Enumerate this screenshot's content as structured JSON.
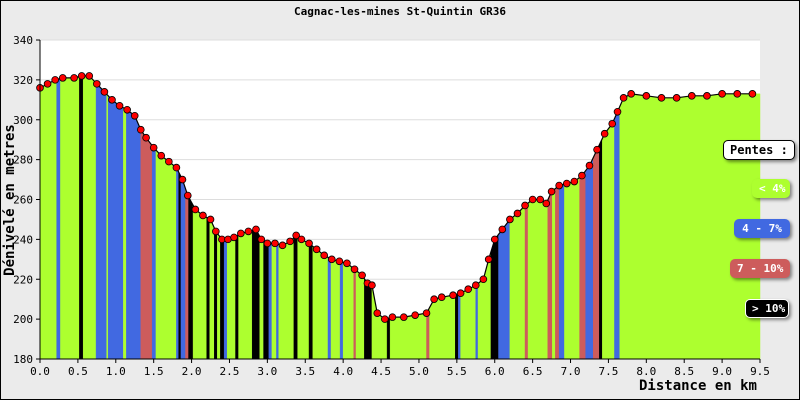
{
  "chart_data": {
    "type": "area",
    "title": "Cagnac-les-mines St-Quintin GR36",
    "xlabel": "Distance en km",
    "ylabel": "Dénivelé en metres",
    "xlim": [
      0,
      9.5
    ],
    "ylim": [
      180,
      340
    ],
    "xticks": [
      "0.0",
      "0.5",
      "1.0",
      "1.5",
      "2.0",
      "2.5",
      "3.0",
      "3.5",
      "4.0",
      "4.5",
      "5.0",
      "5.5",
      "6.0",
      "6.5",
      "7.0",
      "7.5",
      "8.0",
      "8.5",
      "9.0",
      "9.5"
    ],
    "yticks": [
      "180",
      "200",
      "220",
      "240",
      "260",
      "280",
      "300",
      "320",
      "340"
    ],
    "grid": true,
    "legend_position": "right",
    "legend_title": "Pentes :",
    "legend": [
      {
        "label": "< 4%",
        "color": "#adff2f",
        "text_color": "#ffffff"
      },
      {
        "label": "4 - 7%",
        "color": "#4169e1",
        "text_color": "#ffffff"
      },
      {
        "label": "7 - 10%",
        "color": "#cd5c5c",
        "text_color": "#ffffff"
      },
      {
        "label": "> 10%",
        "color": "#000000",
        "text_color": "#ffffff"
      }
    ],
    "marker_color": "#ff0000",
    "profile": [
      [
        0.0,
        316
      ],
      [
        0.1,
        318
      ],
      [
        0.2,
        320
      ],
      [
        0.3,
        321
      ],
      [
        0.45,
        321
      ],
      [
        0.55,
        322
      ],
      [
        0.65,
        322
      ],
      [
        0.75,
        318
      ],
      [
        0.85,
        314
      ],
      [
        0.95,
        310
      ],
      [
        1.05,
        307
      ],
      [
        1.15,
        305
      ],
      [
        1.25,
        302
      ],
      [
        1.33,
        295
      ],
      [
        1.4,
        291
      ],
      [
        1.5,
        286
      ],
      [
        1.6,
        282
      ],
      [
        1.7,
        279
      ],
      [
        1.8,
        276
      ],
      [
        1.88,
        270
      ],
      [
        1.95,
        262
      ],
      [
        2.05,
        255
      ],
      [
        2.15,
        252
      ],
      [
        2.25,
        250
      ],
      [
        2.32,
        244
      ],
      [
        2.4,
        240
      ],
      [
        2.48,
        240
      ],
      [
        2.56,
        241
      ],
      [
        2.65,
        243
      ],
      [
        2.75,
        244
      ],
      [
        2.85,
        245
      ],
      [
        2.92,
        240
      ],
      [
        3.0,
        238
      ],
      [
        3.1,
        238
      ],
      [
        3.2,
        237
      ],
      [
        3.3,
        239
      ],
      [
        3.38,
        242
      ],
      [
        3.45,
        240
      ],
      [
        3.55,
        238
      ],
      [
        3.65,
        235
      ],
      [
        3.75,
        232
      ],
      [
        3.85,
        230
      ],
      [
        3.95,
        229
      ],
      [
        4.05,
        228
      ],
      [
        4.15,
        225
      ],
      [
        4.25,
        222
      ],
      [
        4.32,
        218
      ],
      [
        4.38,
        217
      ],
      [
        4.45,
        203
      ],
      [
        4.55,
        200
      ],
      [
        4.65,
        201
      ],
      [
        4.8,
        201
      ],
      [
        4.95,
        202
      ],
      [
        5.1,
        203
      ],
      [
        5.2,
        210
      ],
      [
        5.3,
        211
      ],
      [
        5.45,
        212
      ],
      [
        5.55,
        213
      ],
      [
        5.65,
        215
      ],
      [
        5.75,
        217
      ],
      [
        5.85,
        220
      ],
      [
        5.92,
        230
      ],
      [
        6.0,
        240
      ],
      [
        6.1,
        245
      ],
      [
        6.2,
        250
      ],
      [
        6.3,
        253
      ],
      [
        6.4,
        257
      ],
      [
        6.5,
        260
      ],
      [
        6.6,
        260
      ],
      [
        6.68,
        258
      ],
      [
        6.75,
        264
      ],
      [
        6.85,
        267
      ],
      [
        6.95,
        268
      ],
      [
        7.05,
        269
      ],
      [
        7.15,
        272
      ],
      [
        7.25,
        277
      ],
      [
        7.35,
        285
      ],
      [
        7.45,
        293
      ],
      [
        7.55,
        298
      ],
      [
        7.62,
        304
      ],
      [
        7.7,
        311
      ],
      [
        7.8,
        313
      ],
      [
        8.0,
        312
      ],
      [
        8.2,
        311
      ],
      [
        8.4,
        311
      ],
      [
        8.6,
        312
      ],
      [
        8.8,
        312
      ],
      [
        9.0,
        313
      ],
      [
        9.2,
        313
      ],
      [
        9.4,
        313
      ]
    ],
    "slope_bands": [
      {
        "from": 0.0,
        "to": 0.22,
        "cls": 0
      },
      {
        "from": 0.22,
        "to": 0.27,
        "cls": 1
      },
      {
        "from": 0.27,
        "to": 0.52,
        "cls": 0
      },
      {
        "from": 0.52,
        "to": 0.57,
        "cls": 3
      },
      {
        "from": 0.57,
        "to": 0.74,
        "cls": 0
      },
      {
        "from": 0.74,
        "to": 0.88,
        "cls": 1
      },
      {
        "from": 0.88,
        "to": 0.9,
        "cls": 0
      },
      {
        "from": 0.9,
        "to": 1.1,
        "cls": 1
      },
      {
        "from": 1.1,
        "to": 1.14,
        "cls": 0
      },
      {
        "from": 1.14,
        "to": 1.33,
        "cls": 1
      },
      {
        "from": 1.33,
        "to": 1.48,
        "cls": 2
      },
      {
        "from": 1.48,
        "to": 1.53,
        "cls": 1
      },
      {
        "from": 1.53,
        "to": 1.8,
        "cls": 0
      },
      {
        "from": 1.8,
        "to": 1.83,
        "cls": 1
      },
      {
        "from": 1.83,
        "to": 1.86,
        "cls": 3
      },
      {
        "from": 1.86,
        "to": 1.92,
        "cls": 1
      },
      {
        "from": 1.92,
        "to": 1.96,
        "cls": 2
      },
      {
        "from": 1.96,
        "to": 2.02,
        "cls": 3
      },
      {
        "from": 2.02,
        "to": 2.2,
        "cls": 0
      },
      {
        "from": 2.2,
        "to": 2.24,
        "cls": 3
      },
      {
        "from": 2.24,
        "to": 2.3,
        "cls": 0
      },
      {
        "from": 2.3,
        "to": 2.34,
        "cls": 3
      },
      {
        "from": 2.34,
        "to": 2.38,
        "cls": 0
      },
      {
        "from": 2.38,
        "to": 2.43,
        "cls": 3
      },
      {
        "from": 2.43,
        "to": 2.47,
        "cls": 1
      },
      {
        "from": 2.47,
        "to": 2.58,
        "cls": 0
      },
      {
        "from": 2.58,
        "to": 2.62,
        "cls": 3
      },
      {
        "from": 2.62,
        "to": 2.8,
        "cls": 0
      },
      {
        "from": 2.8,
        "to": 2.9,
        "cls": 3
      },
      {
        "from": 2.9,
        "to": 2.95,
        "cls": 0
      },
      {
        "from": 2.95,
        "to": 3.02,
        "cls": 3
      },
      {
        "from": 3.02,
        "to": 3.06,
        "cls": 1
      },
      {
        "from": 3.06,
        "to": 3.12,
        "cls": 0
      },
      {
        "from": 3.12,
        "to": 3.15,
        "cls": 1
      },
      {
        "from": 3.15,
        "to": 3.35,
        "cls": 0
      },
      {
        "from": 3.35,
        "to": 3.4,
        "cls": 3
      },
      {
        "from": 3.4,
        "to": 3.55,
        "cls": 0
      },
      {
        "from": 3.55,
        "to": 3.6,
        "cls": 3
      },
      {
        "from": 3.6,
        "to": 3.8,
        "cls": 0
      },
      {
        "from": 3.8,
        "to": 3.84,
        "cls": 1
      },
      {
        "from": 3.84,
        "to": 3.96,
        "cls": 0
      },
      {
        "from": 3.96,
        "to": 4.0,
        "cls": 1
      },
      {
        "from": 4.0,
        "to": 4.14,
        "cls": 0
      },
      {
        "from": 4.14,
        "to": 4.17,
        "cls": 2
      },
      {
        "from": 4.17,
        "to": 4.28,
        "cls": 0
      },
      {
        "from": 4.28,
        "to": 4.38,
        "cls": 3
      },
      {
        "from": 4.38,
        "to": 4.58,
        "cls": 0
      },
      {
        "from": 4.58,
        "to": 4.62,
        "cls": 3
      },
      {
        "from": 4.62,
        "to": 5.1,
        "cls": 0
      },
      {
        "from": 5.1,
        "to": 5.14,
        "cls": 2
      },
      {
        "from": 5.14,
        "to": 5.48,
        "cls": 0
      },
      {
        "from": 5.48,
        "to": 5.52,
        "cls": 3
      },
      {
        "from": 5.52,
        "to": 5.55,
        "cls": 1
      },
      {
        "from": 5.55,
        "to": 5.75,
        "cls": 0
      },
      {
        "from": 5.75,
        "to": 5.78,
        "cls": 1
      },
      {
        "from": 5.78,
        "to": 5.95,
        "cls": 0
      },
      {
        "from": 5.95,
        "to": 6.05,
        "cls": 3
      },
      {
        "from": 6.05,
        "to": 6.2,
        "cls": 1
      },
      {
        "from": 6.2,
        "to": 6.4,
        "cls": 0
      },
      {
        "from": 6.4,
        "to": 6.44,
        "cls": 2
      },
      {
        "from": 6.44,
        "to": 6.7,
        "cls": 0
      },
      {
        "from": 6.7,
        "to": 6.76,
        "cls": 2
      },
      {
        "from": 6.76,
        "to": 6.8,
        "cls": 0
      },
      {
        "from": 6.8,
        "to": 6.85,
        "cls": 2
      },
      {
        "from": 6.85,
        "to": 6.92,
        "cls": 1
      },
      {
        "from": 6.92,
        "to": 7.12,
        "cls": 0
      },
      {
        "from": 7.12,
        "to": 7.2,
        "cls": 2
      },
      {
        "from": 7.2,
        "to": 7.3,
        "cls": 1
      },
      {
        "from": 7.3,
        "to": 7.38,
        "cls": 2
      },
      {
        "from": 7.38,
        "to": 7.42,
        "cls": 3
      },
      {
        "from": 7.42,
        "to": 7.58,
        "cls": 0
      },
      {
        "from": 7.58,
        "to": 7.65,
        "cls": 1
      },
      {
        "from": 7.65,
        "to": 9.5,
        "cls": 0
      }
    ]
  }
}
